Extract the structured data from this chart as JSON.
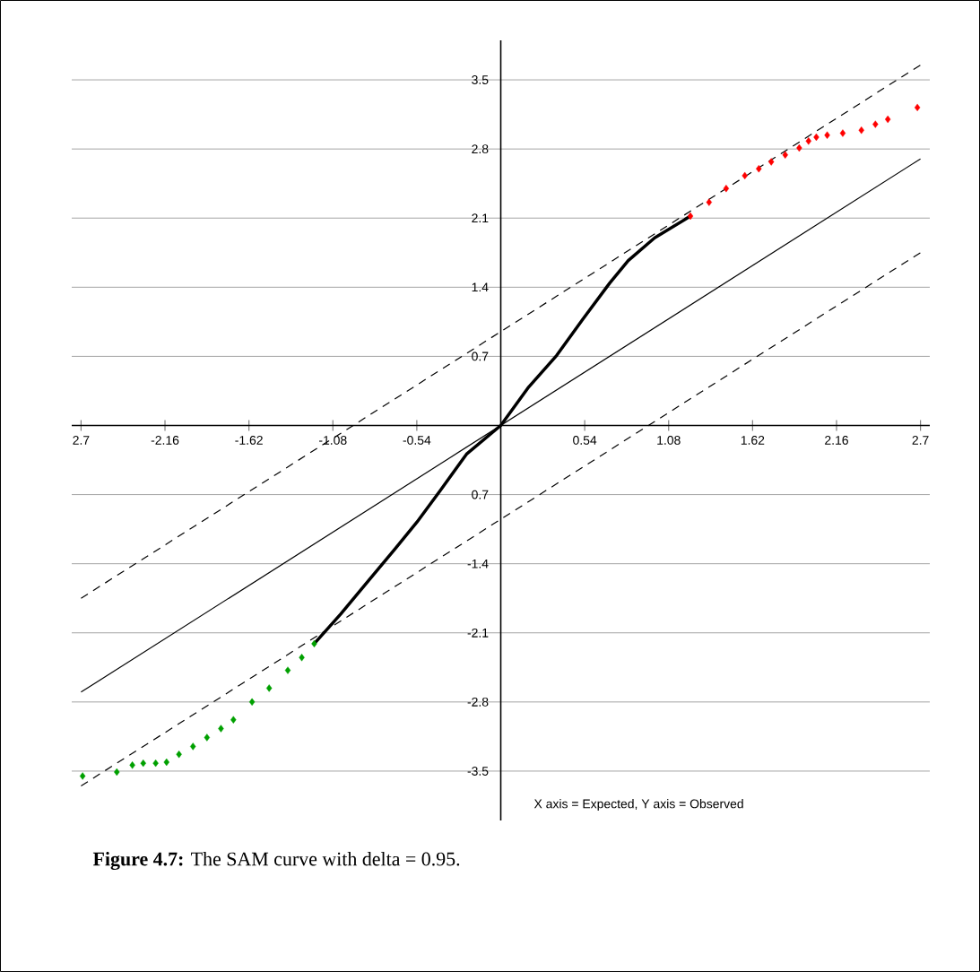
{
  "chart_data": {
    "type": "scatter",
    "xlim": [
      -2.76,
      2.76
    ],
    "ylim": [
      -4.0,
      3.9
    ],
    "xticks": [
      {
        "value": -2.7,
        "label": "2.7"
      },
      -2.16,
      -1.62,
      -1.08,
      -0.54,
      0.54,
      1.08,
      1.62,
      2.16,
      2.7
    ],
    "yticks": [
      -3.5,
      -2.8,
      -2.1,
      -1.4,
      {
        "value": -0.7,
        "label": "0.7"
      },
      0.7,
      1.4,
      2.1,
      2.8,
      3.5
    ],
    "grid": "y",
    "series": [
      {
        "type": "line",
        "color": "#000000",
        "line_style": "solid",
        "x": [
          -2.7,
          2.7
        ],
        "values": [
          -2.7,
          2.7
        ]
      },
      {
        "type": "line",
        "color": "#000000",
        "line_style": "dashed",
        "x": [
          -2.7,
          2.7
        ],
        "values": [
          -1.75,
          3.65
        ]
      },
      {
        "type": "line",
        "color": "#000000",
        "line_style": "dashed",
        "x": [
          -2.7,
          2.7
        ],
        "values": [
          -3.65,
          1.75
        ]
      },
      {
        "marker": "diamond",
        "color": "#00a000",
        "x": [
          -2.69,
          -2.47,
          -2.37,
          -2.3,
          -2.22,
          -2.15,
          -2.07,
          -1.98,
          -1.89,
          -1.8,
          -1.72,
          -1.6,
          -1.49,
          -1.37,
          -1.28,
          -1.2
        ],
        "values": [
          -3.55,
          -3.51,
          -3.44,
          -3.42,
          -3.42,
          -3.41,
          -3.33,
          -3.25,
          -3.16,
          -3.07,
          -2.98,
          -2.8,
          -2.66,
          -2.48,
          -2.35,
          -2.21
        ]
      },
      {
        "type": "line",
        "color": "#000000",
        "line_style": "solid",
        "x": [
          -1.2,
          -1.03,
          -0.85,
          -0.68,
          -0.54,
          -0.39,
          -0.22,
          0.0,
          0.18,
          0.36,
          0.53,
          0.7,
          0.82,
          0.99,
          1.22
        ],
        "values": [
          -2.21,
          -1.91,
          -1.57,
          -1.25,
          -0.98,
          -0.66,
          -0.29,
          0.0,
          0.39,
          0.71,
          1.08,
          1.44,
          1.67,
          1.9,
          2.12
        ]
      },
      {
        "marker": "diamond",
        "color": "#ff0000",
        "x": [
          1.22,
          1.34,
          1.45,
          1.57,
          1.66,
          1.74,
          1.83,
          1.92,
          1.98,
          2.03,
          2.1,
          2.2,
          2.32,
          2.41,
          2.49,
          2.68
        ],
        "values": [
          2.12,
          2.26,
          2.4,
          2.53,
          2.6,
          2.67,
          2.74,
          2.81,
          2.88,
          2.92,
          2.94,
          2.96,
          2.99,
          3.05,
          3.1,
          3.22
        ]
      }
    ],
    "annotations": [
      "X axis = Expected, Y axis = Observed",
      "**Figure 4.7:** The SAM curve with delta = 0.95."
    ]
  }
}
